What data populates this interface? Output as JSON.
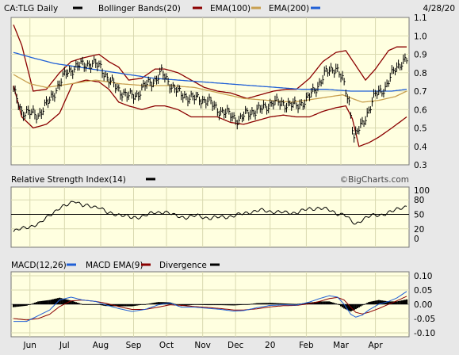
{
  "header": {
    "symbol": "CA:TLG Daily",
    "date": "4/28/20",
    "legend": [
      {
        "label": "Bollinger Bands(20)",
        "color": "#8b0000"
      },
      {
        "label": "EMA(100)",
        "color": "#c8a050"
      },
      {
        "label": "EMA(200)",
        "color": "#1f5fd6"
      }
    ],
    "symbol_swatch_color": "#000000"
  },
  "watermark": "©BigCharts.com",
  "colors": {
    "panel_bg": "#ffffe0",
    "frame_bg": "#e8e8e8",
    "price_bars": "#000000",
    "bollinger": "#8b0000",
    "ema100": "#c8a050",
    "ema200": "#1f5fd6",
    "rsi_line": "#000000",
    "macd_line": "#1f5fd6",
    "macd_signal": "#8b0000",
    "divergence": "#000000"
  },
  "chart_data": [
    {
      "type": "line",
      "panel": "price",
      "title": "CA:TLG Daily",
      "y_ticks": [
        "1.1",
        "1.0",
        "0.9",
        "0.8",
        "0.7",
        "0.6",
        "0.5",
        "0.4",
        "0.3"
      ],
      "ylim": [
        0.3,
        1.1
      ],
      "x_labels": [
        "Jun",
        "Jul",
        "Aug",
        "Sep",
        "Oct",
        "Nov",
        "Dec",
        "20",
        "Feb",
        "Mar",
        "Apr"
      ],
      "x_label_index": [
        10,
        31,
        53,
        73,
        93,
        115,
        135,
        156,
        178,
        199,
        220
      ],
      "n_days": 240,
      "price_anchors": [
        [
          0,
          0.7
        ],
        [
          5,
          0.59
        ],
        [
          15,
          0.57
        ],
        [
          22,
          0.65
        ],
        [
          32,
          0.8
        ],
        [
          40,
          0.84
        ],
        [
          48,
          0.85
        ],
        [
          53,
          0.83
        ],
        [
          58,
          0.76
        ],
        [
          65,
          0.7
        ],
        [
          70,
          0.67
        ],
        [
          75,
          0.68
        ],
        [
          80,
          0.73
        ],
        [
          86,
          0.76
        ],
        [
          90,
          0.8
        ],
        [
          96,
          0.73
        ],
        [
          102,
          0.68
        ],
        [
          110,
          0.66
        ],
        [
          118,
          0.65
        ],
        [
          124,
          0.6
        ],
        [
          132,
          0.57
        ],
        [
          137,
          0.54
        ],
        [
          142,
          0.58
        ],
        [
          150,
          0.6
        ],
        [
          158,
          0.64
        ],
        [
          166,
          0.63
        ],
        [
          172,
          0.62
        ],
        [
          178,
          0.65
        ],
        [
          185,
          0.73
        ],
        [
          190,
          0.8
        ],
        [
          196,
          0.83
        ],
        [
          200,
          0.76
        ],
        [
          204,
          0.64
        ],
        [
          207,
          0.45
        ],
        [
          212,
          0.52
        ],
        [
          216,
          0.6
        ],
        [
          220,
          0.68
        ],
        [
          226,
          0.72
        ],
        [
          232,
          0.82
        ],
        [
          236,
          0.86
        ],
        [
          239,
          0.87
        ]
      ],
      "bb_upper_anchors": [
        [
          0,
          1.06
        ],
        [
          5,
          0.95
        ],
        [
          12,
          0.7
        ],
        [
          20,
          0.71
        ],
        [
          28,
          0.8
        ],
        [
          35,
          0.86
        ],
        [
          42,
          0.88
        ],
        [
          52,
          0.9
        ],
        [
          58,
          0.86
        ],
        [
          64,
          0.83
        ],
        [
          70,
          0.76
        ],
        [
          78,
          0.77
        ],
        [
          86,
          0.82
        ],
        [
          92,
          0.82
        ],
        [
          100,
          0.8
        ],
        [
          108,
          0.76
        ],
        [
          116,
          0.72
        ],
        [
          124,
          0.7
        ],
        [
          132,
          0.69
        ],
        [
          142,
          0.66
        ],
        [
          150,
          0.68
        ],
        [
          158,
          0.7
        ],
        [
          166,
          0.71
        ],
        [
          172,
          0.71
        ],
        [
          180,
          0.77
        ],
        [
          188,
          0.86
        ],
        [
          196,
          0.91
        ],
        [
          202,
          0.92
        ],
        [
          208,
          0.84
        ],
        [
          214,
          0.76
        ],
        [
          220,
          0.82
        ],
        [
          228,
          0.92
        ],
        [
          233,
          0.94
        ],
        [
          239,
          0.94
        ]
      ],
      "bb_lower_anchors": [
        [
          0,
          0.73
        ],
        [
          5,
          0.56
        ],
        [
          12,
          0.5
        ],
        [
          20,
          0.52
        ],
        [
          28,
          0.58
        ],
        [
          36,
          0.74
        ],
        [
          44,
          0.76
        ],
        [
          52,
          0.75
        ],
        [
          58,
          0.71
        ],
        [
          64,
          0.64
        ],
        [
          70,
          0.62
        ],
        [
          78,
          0.6
        ],
        [
          86,
          0.62
        ],
        [
          92,
          0.62
        ],
        [
          100,
          0.6
        ],
        [
          108,
          0.56
        ],
        [
          116,
          0.56
        ],
        [
          124,
          0.56
        ],
        [
          132,
          0.53
        ],
        [
          140,
          0.52
        ],
        [
          148,
          0.54
        ],
        [
          156,
          0.56
        ],
        [
          164,
          0.57
        ],
        [
          172,
          0.56
        ],
        [
          180,
          0.56
        ],
        [
          188,
          0.59
        ],
        [
          196,
          0.61
        ],
        [
          202,
          0.62
        ],
        [
          206,
          0.55
        ],
        [
          210,
          0.4
        ],
        [
          216,
          0.42
        ],
        [
          222,
          0.45
        ],
        [
          230,
          0.5
        ],
        [
          239,
          0.56
        ]
      ],
      "ema100_anchors": [
        [
          0,
          0.79
        ],
        [
          10,
          0.74
        ],
        [
          20,
          0.72
        ],
        [
          35,
          0.74
        ],
        [
          50,
          0.76
        ],
        [
          65,
          0.74
        ],
        [
          80,
          0.73
        ],
        [
          95,
          0.73
        ],
        [
          110,
          0.72
        ],
        [
          125,
          0.69
        ],
        [
          140,
          0.66
        ],
        [
          155,
          0.65
        ],
        [
          170,
          0.64
        ],
        [
          185,
          0.66
        ],
        [
          200,
          0.68
        ],
        [
          212,
          0.64
        ],
        [
          222,
          0.65
        ],
        [
          232,
          0.67
        ],
        [
          239,
          0.7
        ]
      ],
      "ema200_anchors": [
        [
          0,
          0.91
        ],
        [
          12,
          0.88
        ],
        [
          25,
          0.85
        ],
        [
          40,
          0.83
        ],
        [
          55,
          0.81
        ],
        [
          70,
          0.79
        ],
        [
          85,
          0.77
        ],
        [
          100,
          0.76
        ],
        [
          115,
          0.75
        ],
        [
          130,
          0.74
        ],
        [
          145,
          0.73
        ],
        [
          160,
          0.72
        ],
        [
          175,
          0.71
        ],
        [
          190,
          0.71
        ],
        [
          205,
          0.7
        ],
        [
          220,
          0.7
        ],
        [
          230,
          0.7
        ],
        [
          239,
          0.71
        ]
      ]
    },
    {
      "type": "line",
      "panel": "rsi",
      "title": "Relative Strength Index(14)",
      "y_ticks": [
        "100",
        "80",
        "50",
        "20",
        "0"
      ],
      "ylim": [
        0,
        100
      ],
      "reference": 50,
      "rsi_anchors": [
        [
          0,
          14
        ],
        [
          8,
          24
        ],
        [
          16,
          30
        ],
        [
          22,
          50
        ],
        [
          27,
          60
        ],
        [
          32,
          68
        ],
        [
          37,
          80
        ],
        [
          42,
          67
        ],
        [
          47,
          67
        ],
        [
          52,
          66
        ],
        [
          57,
          52
        ],
        [
          65,
          50
        ],
        [
          72,
          42
        ],
        [
          80,
          48
        ],
        [
          86,
          53
        ],
        [
          92,
          56
        ],
        [
          98,
          47
        ],
        [
          105,
          44
        ],
        [
          112,
          47
        ],
        [
          120,
          42
        ],
        [
          128,
          45
        ],
        [
          135,
          47
        ],
        [
          142,
          54
        ],
        [
          150,
          58
        ],
        [
          158,
          56
        ],
        [
          165,
          53
        ],
        [
          172,
          54
        ],
        [
          180,
          61
        ],
        [
          186,
          64
        ],
        [
          192,
          58
        ],
        [
          197,
          52
        ],
        [
          201,
          50
        ],
        [
          205,
          36
        ],
        [
          208,
          30
        ],
        [
          212,
          40
        ],
        [
          218,
          47
        ],
        [
          224,
          50
        ],
        [
          230,
          55
        ],
        [
          236,
          65
        ],
        [
          239,
          67
        ]
      ]
    },
    {
      "type": "line",
      "panel": "macd",
      "title": "MACD(12,26)",
      "series_labels": [
        "MACD EMA(9)",
        "Divergence"
      ],
      "y_ticks": [
        "0.10",
        "0.05",
        "0.00",
        "-0.05",
        "-0.10"
      ],
      "ylim": [
        -0.1,
        0.1
      ],
      "macd_anchors": [
        [
          0,
          -0.06
        ],
        [
          8,
          -0.06
        ],
        [
          15,
          -0.04
        ],
        [
          22,
          -0.02
        ],
        [
          28,
          0.015
        ],
        [
          35,
          0.025
        ],
        [
          42,
          0.015
        ],
        [
          50,
          0.01
        ],
        [
          56,
          -0.002
        ],
        [
          64,
          -0.015
        ],
        [
          72,
          -0.025
        ],
        [
          80,
          -0.018
        ],
        [
          88,
          -0.002
        ],
        [
          95,
          0.005
        ],
        [
          102,
          -0.01
        ],
        [
          110,
          -0.01
        ],
        [
          118,
          -0.014
        ],
        [
          126,
          -0.018
        ],
        [
          134,
          -0.024
        ],
        [
          140,
          -0.022
        ],
        [
          148,
          -0.012
        ],
        [
          156,
          -0.004
        ],
        [
          164,
          -0.002
        ],
        [
          172,
          -0.003
        ],
        [
          180,
          0.008
        ],
        [
          186,
          0.02
        ],
        [
          192,
          0.03
        ],
        [
          197,
          0.025
        ],
        [
          201,
          0.0
        ],
        [
          205,
          -0.035
        ],
        [
          208,
          -0.045
        ],
        [
          212,
          -0.038
        ],
        [
          216,
          -0.02
        ],
        [
          222,
          0.0
        ],
        [
          228,
          0.01
        ],
        [
          233,
          0.022
        ],
        [
          239,
          0.045
        ]
      ],
      "signal_anchors": [
        [
          0,
          -0.05
        ],
        [
          8,
          -0.055
        ],
        [
          15,
          -0.05
        ],
        [
          22,
          -0.035
        ],
        [
          28,
          -0.008
        ],
        [
          35,
          0.012
        ],
        [
          42,
          0.015
        ],
        [
          50,
          0.01
        ],
        [
          56,
          0.004
        ],
        [
          64,
          -0.008
        ],
        [
          72,
          -0.018
        ],
        [
          80,
          -0.018
        ],
        [
          88,
          -0.01
        ],
        [
          95,
          -0.002
        ],
        [
          102,
          -0.004
        ],
        [
          110,
          -0.008
        ],
        [
          118,
          -0.011
        ],
        [
          126,
          -0.015
        ],
        [
          134,
          -0.02
        ],
        [
          140,
          -0.02
        ],
        [
          148,
          -0.016
        ],
        [
          156,
          -0.009
        ],
        [
          164,
          -0.005
        ],
        [
          172,
          -0.004
        ],
        [
          180,
          0.002
        ],
        [
          186,
          0.01
        ],
        [
          192,
          0.02
        ],
        [
          197,
          0.024
        ],
        [
          201,
          0.015
        ],
        [
          205,
          -0.01
        ],
        [
          208,
          -0.028
        ],
        [
          212,
          -0.034
        ],
        [
          216,
          -0.028
        ],
        [
          222,
          -0.015
        ],
        [
          228,
          0.0
        ],
        [
          233,
          0.012
        ],
        [
          239,
          0.028
        ]
      ]
    }
  ]
}
